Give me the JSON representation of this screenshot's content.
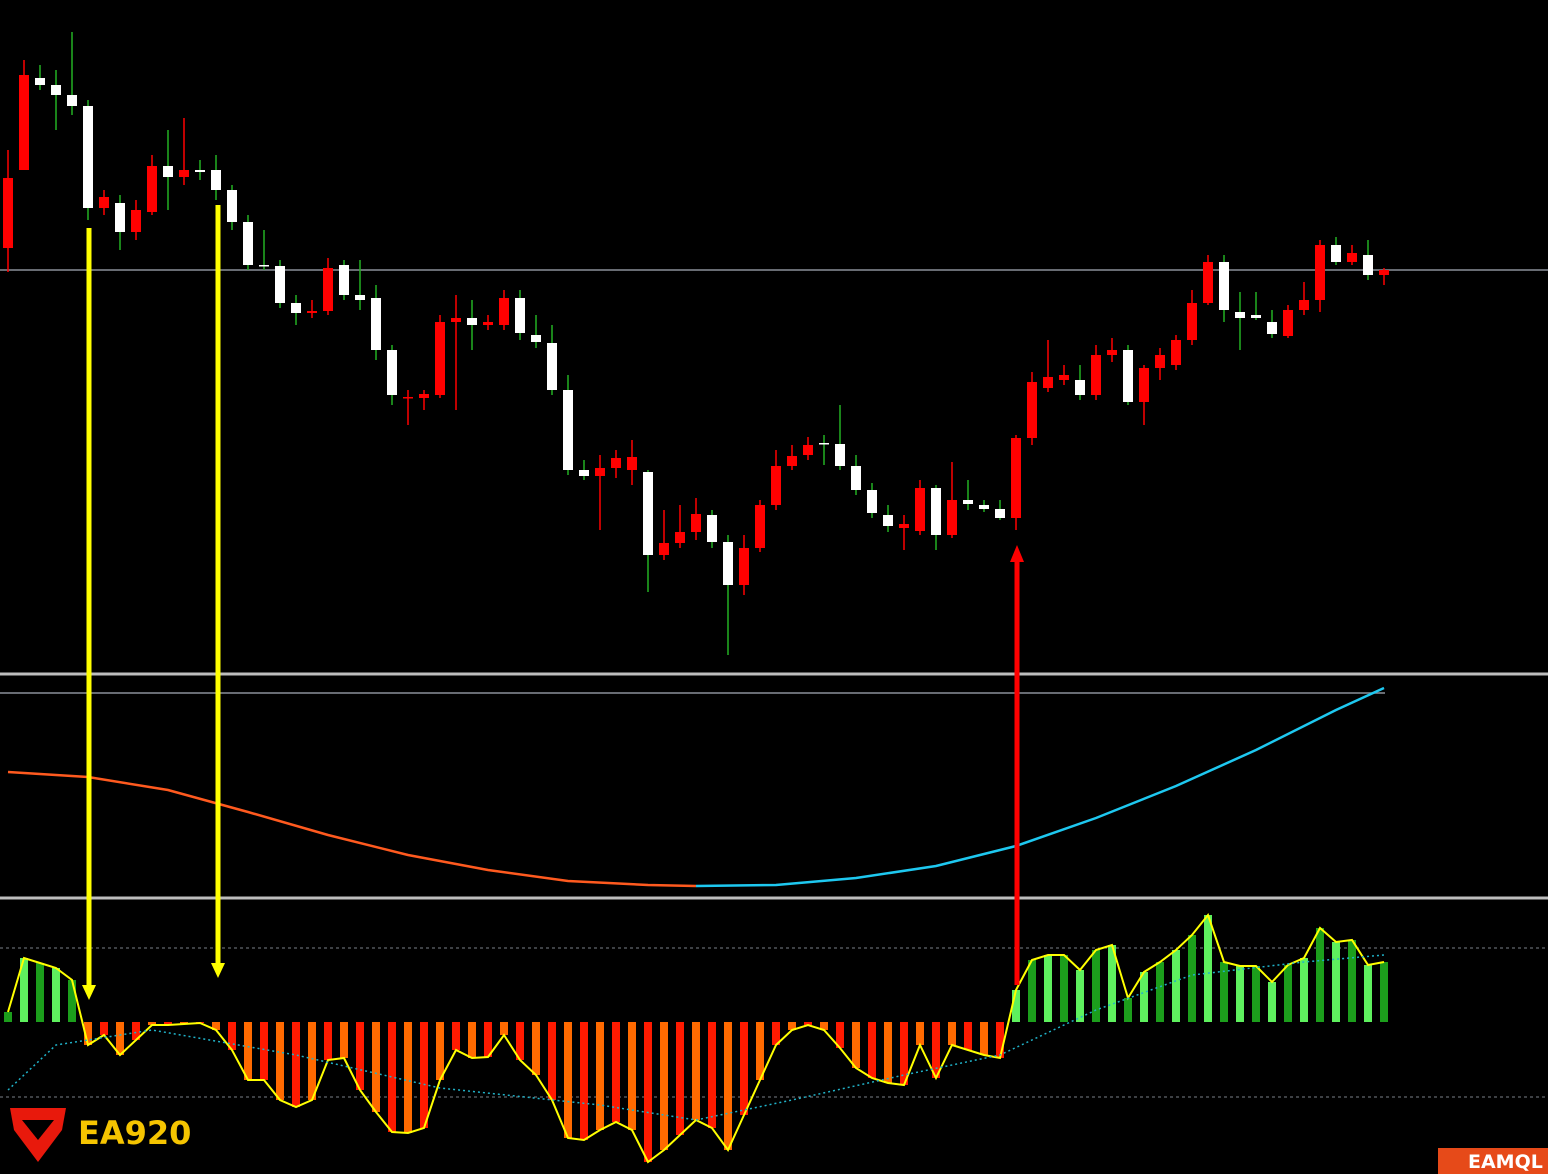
{
  "logo": "EA920",
  "watermark": "EAMQL",
  "chart_data": [
    {
      "type": "candlestick",
      "ylim": [
        30,
        700
      ],
      "hline": 430,
      "up_color": "#ff0000",
      "down_color": "#ffffff",
      "down_wick_color": "#22b022",
      "open": [
        452,
        530,
        622,
        615,
        605,
        594,
        492,
        497,
        468,
        488,
        534,
        523,
        530,
        530,
        510,
        478,
        435,
        434,
        397,
        387,
        389,
        435,
        405,
        402,
        350,
        302,
        302,
        305,
        378,
        382,
        375,
        375,
        402,
        365,
        357,
        310,
        230,
        224,
        232,
        230,
        228,
        145,
        157,
        168,
        185,
        158,
        115,
        152,
        195,
        234,
        245,
        257,
        256,
        234,
        210,
        185,
        172,
        169,
        212,
        165,
        200,
        195,
        191,
        182,
        262,
        312,
        320,
        320,
        305,
        345,
        350,
        298,
        332,
        335,
        360,
        397,
        438,
        388,
        385,
        378,
        364,
        390,
        400,
        455,
        438,
        445,
        425
      ],
      "close": [
        522,
        625,
        615,
        605,
        594,
        492,
        503,
        468,
        490,
        534,
        523,
        530,
        528,
        510,
        478,
        435,
        434,
        397,
        387,
        389,
        432,
        405,
        400,
        350,
        305,
        303,
        306,
        378,
        382,
        375,
        378,
        402,
        367,
        358,
        310,
        230,
        224,
        232,
        242,
        243,
        145,
        157,
        168,
        186,
        158,
        115,
        152,
        195,
        234,
        244,
        255,
        256,
        234,
        210,
        187,
        174,
        176,
        212,
        165,
        200,
        196,
        191,
        182,
        262,
        318,
        323,
        325,
        305,
        345,
        350,
        298,
        332,
        345,
        360,
        397,
        438,
        390,
        382,
        382,
        366,
        390,
        400,
        455,
        438,
        447,
        425,
        430
      ],
      "high": [
        550,
        640,
        635,
        630,
        668,
        600,
        510,
        505,
        500,
        545,
        570,
        582,
        540,
        545,
        515,
        485,
        470,
        440,
        405,
        400,
        442,
        440,
        440,
        415,
        355,
        310,
        310,
        385,
        405,
        400,
        385,
        410,
        410,
        385,
        375,
        325,
        240,
        245,
        250,
        260,
        230,
        190,
        195,
        202,
        190,
        165,
        165,
        200,
        250,
        255,
        263,
        265,
        295,
        245,
        217,
        195,
        185,
        220,
        215,
        238,
        220,
        200,
        200,
        265,
        328,
        360,
        335,
        335,
        355,
        362,
        355,
        335,
        352,
        365,
        410,
        445,
        445,
        408,
        408,
        390,
        395,
        418,
        460,
        463,
        455,
        460,
        432
      ],
      "low": [
        428,
        530,
        610,
        570,
        585,
        480,
        485,
        450,
        460,
        485,
        490,
        515,
        520,
        500,
        470,
        430,
        430,
        392,
        375,
        382,
        385,
        400,
        390,
        340,
        295,
        275,
        290,
        302,
        290,
        350,
        370,
        370,
        360,
        352,
        305,
        225,
        220,
        170,
        222,
        215,
        108,
        140,
        152,
        160,
        152,
        45,
        105,
        148,
        190,
        230,
        240,
        235,
        230,
        205,
        182,
        168,
        150,
        165,
        150,
        162,
        190,
        188,
        180,
        170,
        255,
        308,
        315,
        300,
        300,
        338,
        295,
        275,
        320,
        330,
        355,
        395,
        378,
        350,
        380,
        362,
        362,
        385,
        388,
        435,
        435,
        420,
        415
      ]
    },
    {
      "type": "line",
      "ylim": [
        3,
        225
      ],
      "hline": 207,
      "series": [
        {
          "color": "#ff5a1f",
          "x": [
            0,
            5,
            10,
            15,
            20,
            25,
            30,
            35,
            40,
            43
          ],
          "values": [
            128,
            123,
            110,
            88,
            65,
            45,
            30,
            19,
            15,
            14
          ]
        },
        {
          "color": "#1ec8f0",
          "x": [
            43,
            48,
            53,
            58,
            63,
            68,
            73,
            78,
            83,
            86
          ],
          "values": [
            14,
            15,
            22,
            34,
            54,
            82,
            114,
            150,
            190,
            212
          ]
        }
      ]
    },
    {
      "type": "histogram",
      "ylim": [
        -152,
        122
      ],
      "hlines": [
        74,
        -75
      ],
      "colors_positive": [
        "#1c9e1c",
        "#5ef05e"
      ],
      "colors_negative": [
        "#ff1a00",
        "#ff6a00"
      ],
      "line_color": "#ffff00",
      "values": [
        10,
        64,
        59,
        54,
        42,
        -23,
        -13,
        -33,
        -18,
        -3,
        -3,
        -2,
        -1,
        -8,
        -28,
        -58,
        -58,
        -78,
        -85,
        -78,
        -38,
        -36,
        -68,
        -90,
        -110,
        -111,
        -106,
        -58,
        -28,
        -36,
        -35,
        -13,
        -38,
        -53,
        -78,
        -116,
        -118,
        -108,
        -100,
        -108,
        -140,
        -128,
        -113,
        -98,
        -106,
        -128,
        -93,
        -58,
        -23,
        -8,
        -3,
        -8,
        -26,
        -46,
        -56,
        -61,
        -63,
        -23,
        -56,
        -23,
        -28,
        -33,
        -36,
        32,
        62,
        67,
        67,
        52,
        72,
        77,
        24,
        50,
        60,
        72,
        87,
        107,
        60,
        56,
        56,
        40,
        57,
        64,
        94,
        80,
        82,
        57,
        60
      ],
      "signal": {
        "color": "#20b2c8",
        "x": [
          0,
          3,
          9,
          18,
          27,
          37,
          43,
          49,
          56,
          62,
          68,
          74,
          81,
          86
        ],
        "values": [
          -68,
          -23,
          -8,
          -33,
          -66,
          -83,
          -98,
          -78,
          -53,
          -33,
          12,
          47,
          60,
          67
        ]
      }
    }
  ]
}
